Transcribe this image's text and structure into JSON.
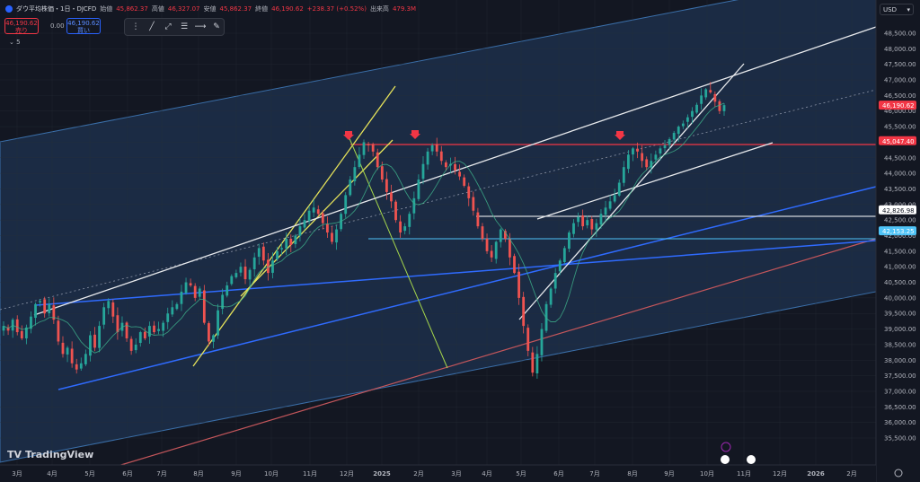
{
  "header": {
    "symbol": "ダウ平均株価・1日・DJCFD",
    "open_label": "始値",
    "open": "45,862.37",
    "high_label": "高値",
    "high": "46,327.07",
    "low_label": "安値",
    "low": "45,862.37",
    "close_label": "終値",
    "close": "46,190.62",
    "change": "+238.37 (+0.52%)",
    "volume_label": "出来高",
    "volume": "479.3M"
  },
  "trade": {
    "sell_price": "46,190.62",
    "sell_label": "売り",
    "spread": "0.00",
    "buy_price": "46,190.62",
    "buy_label": "買い"
  },
  "indicator_label": "5",
  "currency": "USD",
  "brand": "TradingView",
  "colors": {
    "background": "#131722",
    "up": "#26a69a",
    "down": "#ef5350",
    "channel_fill": "#1f3350",
    "resistance": "#f23645"
  },
  "chart_data": {
    "type": "candlestick",
    "ylim": [
      35000,
      49000
    ],
    "y_ticks": [
      "35,500.00",
      "36,000.00",
      "36,500.00",
      "37,000.00",
      "37,500.00",
      "38,000.00",
      "38,500.00",
      "39,000.00",
      "39,500.00",
      "40,000.00",
      "40,500.00",
      "41,000.00",
      "41,500.00",
      "42,000.00",
      "42,500.00",
      "43,000.00",
      "43,500.00",
      "44,000.00",
      "44,500.00",
      "45,000.00",
      "45,500.00",
      "46,000.00",
      "46,500.00",
      "47,000.00",
      "47,500.00",
      "48,000.00",
      "48,500.00"
    ],
    "x_ticks": [
      "3月",
      "4月",
      "5月",
      "6月",
      "7月",
      "8月",
      "9月",
      "10月",
      "11月",
      "12月",
      "2025",
      "2月",
      "3月",
      "4月",
      "5月",
      "6月",
      "7月",
      "8月",
      "9月",
      "10月",
      "11月",
      "12月",
      "2026",
      "2月"
    ],
    "price_labels": [
      {
        "value": 46190.62,
        "text": "46,190.62",
        "color": "#f23645"
      },
      {
        "value": 45047.4,
        "text": "45,047.40",
        "color": "#f23645"
      },
      {
        "value": 42826.98,
        "text": "42,826.98",
        "color": "#ffffff"
      },
      {
        "value": 42153.25,
        "text": "42,153.25",
        "color": "#4fc3f7"
      }
    ],
    "series_close": [
      39100,
      38950,
      39300,
      38900,
      38700,
      39050,
      39400,
      39800,
      39900,
      39500,
      39800,
      39300,
      38600,
      38200,
      38400,
      37900,
      37700,
      37900,
      38200,
      38800,
      38400,
      39100,
      39700,
      39900,
      39400,
      38900,
      39200,
      38700,
      38300,
      38500,
      38900,
      38700,
      39100,
      38900,
      39000,
      39200,
      39500,
      39700,
      39800,
      40200,
      40500,
      40400,
      40000,
      40300,
      39200,
      38600,
      38800,
      39600,
      40100,
      40400,
      40700,
      40800,
      41000,
      40600,
      40900,
      41300,
      41600,
      41200,
      40800,
      41200,
      41500,
      41600,
      41900,
      41700,
      42000,
      42300,
      42500,
      42800,
      42900,
      42700,
      42400,
      42100,
      41800,
      42200,
      42700,
      43300,
      43800,
      44200,
      44600,
      45000,
      44900,
      44700,
      44200,
      43800,
      43400,
      43100,
      42500,
      42100,
      42300,
      42700,
      43200,
      43800,
      44300,
      44700,
      44900,
      44700,
      44400,
      44200,
      44300,
      44100,
      43900,
      43600,
      43200,
      42800,
      42300,
      41900,
      41500,
      41300,
      41800,
      42200,
      41900,
      41300,
      40800,
      40000,
      39100,
      38300,
      37600,
      38200,
      39000,
      39800,
      40300,
      40800,
      41200,
      41600,
      42100,
      42400,
      42600,
      42300,
      42500,
      42200,
      42400,
      42700,
      42900,
      43100,
      43300,
      43700,
      44200,
      44600,
      44800,
      44700,
      44400,
      44200,
      44400,
      44600,
      44800,
      44900,
      45100,
      45300,
      45500,
      45600,
      45800,
      46000,
      46200,
      46500,
      46700,
      46600,
      46300,
      46000,
      46190
    ]
  }
}
